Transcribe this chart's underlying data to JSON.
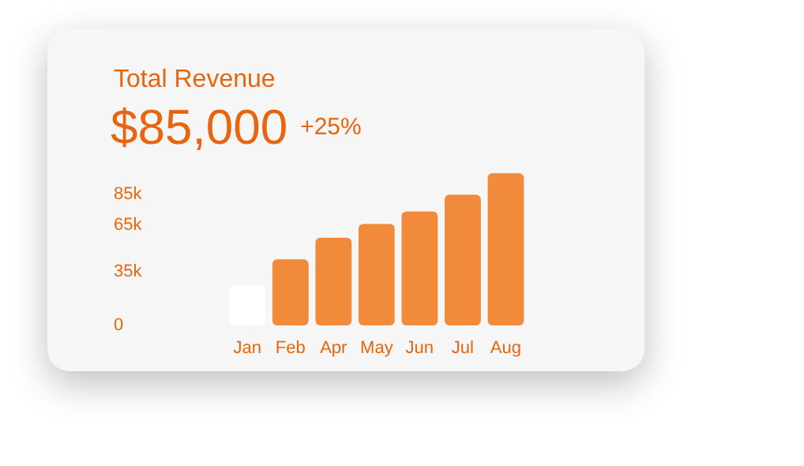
{
  "chart_data": {
    "type": "bar",
    "title": "Total Revenue",
    "subtitle": "$85,000",
    "annotations": [
      "+25%"
    ],
    "categories": [
      "Jan",
      "Feb",
      "Apr",
      "May",
      "Jun",
      "Jul",
      "Aug"
    ],
    "values": [
      26000,
      43000,
      57000,
      66000,
      74000,
      85000,
      99000
    ],
    "colors": [
      "#ffffff",
      "#f28a3c",
      "#f28a3c",
      "#f28a3c",
      "#f28a3c",
      "#f28a3c",
      "#f28a3c"
    ],
    "ylim": [
      0,
      100000
    ],
    "yticks": [
      {
        "value": 0,
        "label": "0"
      },
      {
        "value": 35000,
        "label": "35k"
      },
      {
        "value": 65000,
        "label": "65k"
      },
      {
        "value": 85000,
        "label": "85k"
      }
    ],
    "grid": false,
    "legend": false
  }
}
